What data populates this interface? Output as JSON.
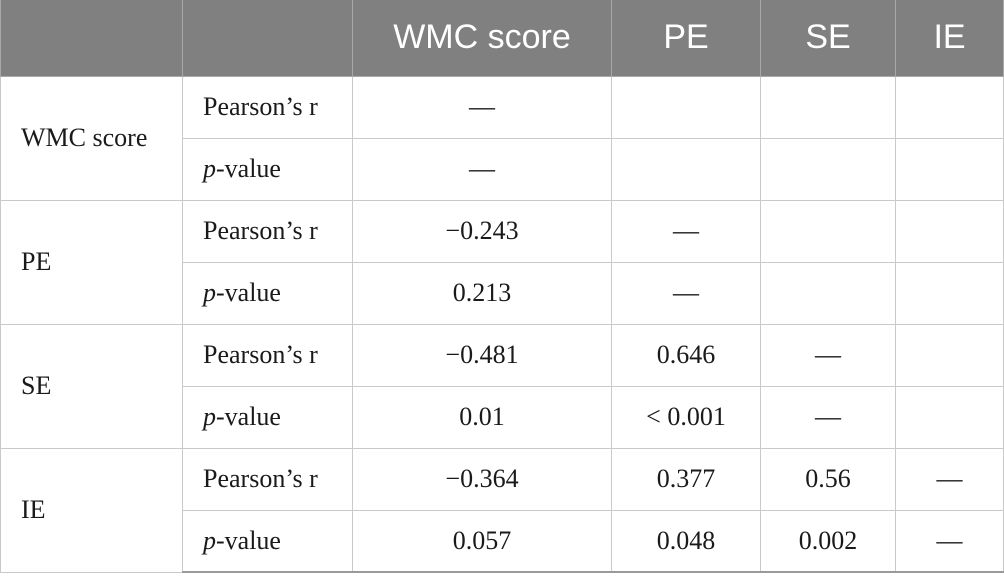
{
  "table": {
    "headers": [
      "",
      "",
      "WMC score",
      "PE",
      "SE",
      "IE"
    ],
    "groups": [
      {
        "variable": "WMC score",
        "rows": [
          {
            "stat_prefix": "",
            "stat_label": "Pearson’s r",
            "values": [
              "—",
              "",
              "",
              ""
            ]
          },
          {
            "stat_prefix": "p",
            "stat_label": "-value",
            "values": [
              "—",
              "",
              "",
              ""
            ]
          }
        ]
      },
      {
        "variable": "PE",
        "rows": [
          {
            "stat_prefix": "",
            "stat_label": "Pearson’s r",
            "values": [
              "−0.243",
              "—",
              "",
              ""
            ]
          },
          {
            "stat_prefix": "p",
            "stat_label": "-value",
            "values": [
              "0.213",
              "—",
              "",
              ""
            ]
          }
        ]
      },
      {
        "variable": "SE",
        "rows": [
          {
            "stat_prefix": "",
            "stat_label": "Pearson’s r",
            "values": [
              "−0.481",
              "0.646",
              "—",
              ""
            ]
          },
          {
            "stat_prefix": "p",
            "stat_label": "-value",
            "values": [
              "0.01",
              "< 0.001",
              "—",
              ""
            ]
          }
        ]
      },
      {
        "variable": "IE",
        "rows": [
          {
            "stat_prefix": "",
            "stat_label": "Pearson’s r",
            "values": [
              "−0.364",
              "0.377",
              "0.56",
              "—"
            ]
          },
          {
            "stat_prefix": "p",
            "stat_label": "-value",
            "values": [
              "0.057",
              "0.048",
              "0.002",
              "—"
            ]
          }
        ]
      }
    ]
  },
  "colors": {
    "header_bg": "#808080",
    "header_text": "#ffffff",
    "grid_line": "#c9c9c9"
  }
}
